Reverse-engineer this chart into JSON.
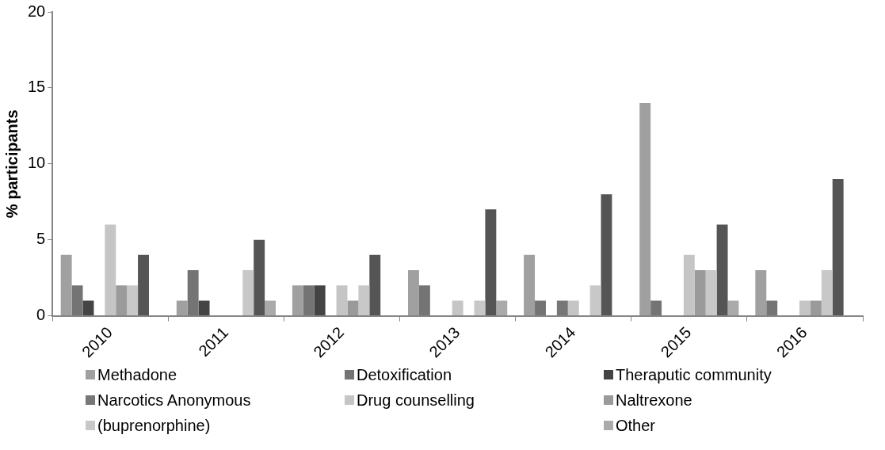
{
  "chart_data": {
    "type": "bar",
    "ylabel": "% participants",
    "categories": [
      "2010",
      "2011",
      "2012",
      "2013",
      "2014",
      "2015",
      "2016"
    ],
    "ylim": [
      0,
      20
    ],
    "yticks": [
      0,
      5,
      10,
      15,
      20
    ],
    "grid": false,
    "legend": "bottom",
    "series": [
      {
        "name": "Methadone",
        "color": "#a0a0a0",
        "values": [
          4,
          1,
          2,
          3,
          4,
          14,
          3
        ]
      },
      {
        "name": "Detoxification",
        "color": "#747474",
        "values": [
          2,
          3,
          2,
          2,
          1,
          1,
          1
        ]
      },
      {
        "name": "Theraputic community",
        "color": "#444444",
        "values": [
          1,
          1,
          2,
          0,
          0,
          0,
          0
        ]
      },
      {
        "name": "Narcotics Anonymous",
        "color": "#777777",
        "values": [
          0,
          0,
          0,
          0,
          1,
          0,
          0
        ]
      },
      {
        "name": "Drug counselling",
        "color": "#c5c5c5",
        "values": [
          6,
          0,
          2,
          1,
          1,
          4,
          1
        ]
      },
      {
        "name": "Naltrexone",
        "color": "#9a9a9a",
        "values": [
          2,
          0,
          1,
          0,
          0,
          3,
          1
        ]
      },
      {
        "name": "(buprenorphine)",
        "color": "#c8c8c8",
        "values": [
          2,
          3,
          2,
          1,
          2,
          3,
          3
        ]
      },
      {
        "color": "#555555",
        "values": [
          4,
          5,
          4,
          7,
          8,
          6,
          9
        ]
      },
      {
        "name": "Other",
        "color": "#aaaaaa",
        "values": [
          0,
          1,
          0,
          1,
          0,
          1,
          0
        ]
      }
    ]
  }
}
